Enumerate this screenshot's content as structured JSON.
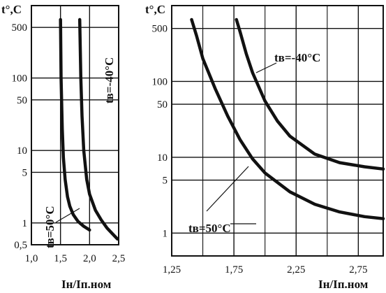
{
  "chart_data": [
    {
      "type": "line",
      "title": "",
      "ylabel": "t°,С",
      "xlabel": "Iн/Iп.ном",
      "xlim": [
        1.0,
        2.5
      ],
      "ylim": [
        0.5,
        1000
      ],
      "yscale": "log",
      "xticks": [
        1.0,
        1.5,
        2.0,
        2.5
      ],
      "xtick_labels": [
        "1,0",
        "1,5",
        "2,0",
        "2,5"
      ],
      "yticks": [
        0.5,
        1,
        5,
        10,
        50,
        100,
        500
      ],
      "ytick_labels": [
        "0,5",
        "1",
        "5",
        "10",
        "50",
        "100",
        "500"
      ],
      "grid": true,
      "series": [
        {
          "name": "tв=50°С",
          "x": [
            1.5,
            1.51,
            1.53,
            1.55,
            1.58,
            1.62,
            1.66,
            1.72,
            1.8,
            1.9,
            2.0
          ],
          "y": [
            1000,
            100,
            20,
            8,
            4,
            2.3,
            1.7,
            1.3,
            1.05,
            0.9,
            0.8
          ]
        },
        {
          "name": "tв=-40°С",
          "x": [
            1.83,
            1.85,
            1.87,
            1.9,
            1.95,
            2.0,
            2.1,
            2.2,
            2.3,
            2.4,
            2.48
          ],
          "y": [
            1000,
            100,
            30,
            10,
            4,
            2.5,
            1.5,
            1.1,
            0.85,
            0.7,
            0.6
          ]
        }
      ],
      "annotations": [
        "tв=-40°С",
        "tв=50°С"
      ]
    },
    {
      "type": "line",
      "title": "",
      "ylabel": "t°,С",
      "xlabel": "Iн/Iп.ном",
      "xlim": [
        1.25,
        2.95
      ],
      "ylim": [
        0.5,
        1000
      ],
      "yscale": "log",
      "xticks": [
        1.25,
        1.75,
        2.25,
        2.75
      ],
      "xtick_labels": [
        "1,25",
        "1,75",
        "2,25",
        "2,75"
      ],
      "yticks": [
        1,
        5,
        10,
        50,
        100,
        500
      ],
      "ytick_labels": [
        "1",
        "5",
        "10",
        "50",
        "100",
        "500"
      ],
      "grid": true,
      "series": [
        {
          "name": "tв=50°С",
          "x": [
            1.41,
            1.45,
            1.5,
            1.6,
            1.7,
            1.8,
            1.9,
            2.0,
            2.2,
            2.4,
            2.6,
            2.8,
            2.95
          ],
          "y": [
            850,
            400,
            200,
            80,
            35,
            17,
            9.5,
            6.2,
            3.5,
            2.4,
            1.9,
            1.65,
            1.55
          ]
        },
        {
          "name": "tв=-40°С",
          "x": [
            1.77,
            1.8,
            1.85,
            1.9,
            2.0,
            2.1,
            2.2,
            2.4,
            2.6,
            2.8,
            2.95
          ],
          "y": [
            850,
            450,
            230,
            130,
            55,
            30,
            19,
            11,
            8.5,
            7.5,
            7
          ]
        }
      ],
      "annotations": [
        "tв=-40°С",
        "tв=50°С"
      ]
    }
  ]
}
